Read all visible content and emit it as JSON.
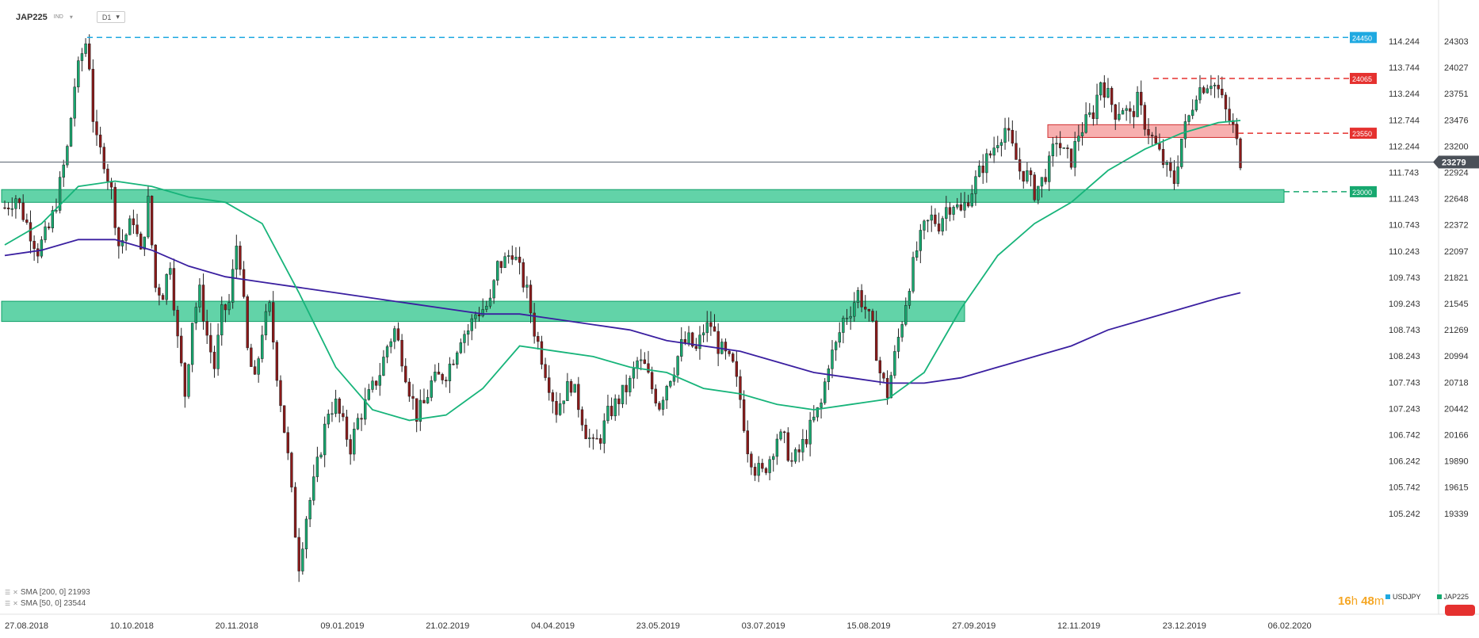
{
  "header": {
    "symbol": "JAP225",
    "tag": "IND",
    "caret": "▾",
    "timeframe": "D1"
  },
  "indicators": [
    {
      "label": "SMA [200, 0] 21993",
      "color": "#3a1fa0"
    },
    {
      "label": "SMA [50, 0] 23544",
      "color": "#17b47a"
    }
  ],
  "timer": {
    "hours": "16",
    "h": "h ",
    "minutes": "48",
    "m": "m"
  },
  "legend": {
    "left": "USDJPY",
    "right": "JAP225"
  },
  "colors": {
    "up": "#17a86f",
    "down": "#8b1a1a",
    "zone_green": "#2ec48b",
    "zone_red": "#f06d6d",
    "sma200": "#3a1fa0",
    "sma50": "#17b47a",
    "cyan": "#1fa9e1",
    "red": "#e5312f"
  },
  "chart_data": {
    "type": "candlestick",
    "xlabels": [
      "27.08.2018",
      "10.10.2018",
      "20.11.2018",
      "09.01.2019",
      "21.02.2019",
      "04.04.2019",
      "23.05.2019",
      "03.07.2019",
      "15.08.2019",
      "27.09.2019",
      "12.11.2019",
      "23.12.2019",
      "06.02.2020"
    ],
    "right_axis": [
      "24303",
      "24027",
      "23751",
      "23476",
      "23200",
      "22924",
      "22648",
      "22372",
      "22097",
      "21821",
      "21545",
      "21269",
      "20994",
      "20718",
      "20442",
      "20166",
      "19890",
      "19615",
      "19339"
    ],
    "left_axis": [
      "114.244",
      "113.744",
      "113.244",
      "112.744",
      "112.244",
      "111.743",
      "111.243",
      "110.743",
      "110.243",
      "109.743",
      "109.243",
      "108.743",
      "108.243",
      "107.743",
      "107.243",
      "106.742",
      "106.242",
      "105.742",
      "105.242"
    ],
    "price_range": [
      19139,
      24579
    ],
    "last_price": "23279",
    "levels": [
      {
        "label": "24450",
        "value": 24450,
        "color": "cyan"
      },
      {
        "label": "24065",
        "value": 24065,
        "color": "red"
      },
      {
        "label": "23550",
        "value": 23550,
        "color": "red"
      },
      {
        "label": "23000",
        "value": 23000,
        "color": "green"
      }
    ],
    "zones": [
      {
        "color": "green",
        "from": 22900,
        "to": 23020
      },
      {
        "color": "green",
        "from": 21780,
        "to": 21970
      },
      {
        "color": "red",
        "from": 23510,
        "to": 23630
      }
    ],
    "path_points": [
      [
        0,
        22850
      ],
      [
        3,
        22950
      ],
      [
        6,
        22700
      ],
      [
        9,
        22450
      ],
      [
        12,
        22650
      ],
      [
        14,
        22900
      ],
      [
        17,
        23400
      ],
      [
        19,
        24000
      ],
      [
        21,
        24300
      ],
      [
        22,
        24400
      ],
      [
        23,
        24200
      ],
      [
        24,
        23700
      ],
      [
        25,
        23450
      ],
      [
        27,
        23300
      ],
      [
        29,
        23000
      ],
      [
        31,
        22500
      ],
      [
        33,
        22600
      ],
      [
        35,
        22750
      ],
      [
        37,
        22400
      ],
      [
        39,
        22900
      ],
      [
        41,
        22100
      ],
      [
        43,
        22050
      ],
      [
        45,
        22350
      ],
      [
        47,
        21600
      ],
      [
        49,
        21100
      ],
      [
        51,
        21800
      ],
      [
        53,
        22050
      ],
      [
        55,
        21650
      ],
      [
        57,
        21350
      ],
      [
        59,
        21850
      ],
      [
        61,
        21950
      ],
      [
        63,
        22500
      ],
      [
        64,
        22350
      ],
      [
        66,
        21500
      ],
      [
        68,
        21200
      ],
      [
        70,
        21700
      ],
      [
        72,
        21900
      ],
      [
        74,
        21300
      ],
      [
        77,
        20500
      ],
      [
        79,
        19800
      ],
      [
        80,
        19500
      ],
      [
        82,
        19950
      ],
      [
        84,
        20250
      ],
      [
        86,
        20600
      ],
      [
        88,
        20950
      ],
      [
        90,
        21000
      ],
      [
        92,
        20800
      ],
      [
        94,
        20600
      ],
      [
        96,
        20850
      ],
      [
        98,
        21000
      ],
      [
        100,
        21150
      ],
      [
        102,
        21300
      ],
      [
        104,
        21550
      ],
      [
        106,
        21700
      ],
      [
        108,
        21450
      ],
      [
        110,
        21150
      ],
      [
        112,
        20900
      ],
      [
        114,
        21000
      ],
      [
        116,
        21200
      ],
      [
        118,
        21250
      ],
      [
        120,
        21300
      ],
      [
        122,
        21450
      ],
      [
        124,
        21650
      ],
      [
        126,
        21700
      ],
      [
        128,
        21850
      ],
      [
        130,
        21900
      ],
      [
        132,
        21950
      ],
      [
        134,
        22300
      ],
      [
        136,
        22350
      ],
      [
        138,
        22450
      ],
      [
        140,
        22250
      ],
      [
        142,
        22050
      ],
      [
        144,
        21700
      ],
      [
        146,
        21450
      ],
      [
        148,
        21200
      ],
      [
        150,
        20950
      ],
      [
        152,
        21100
      ],
      [
        154,
        21200
      ],
      [
        156,
        21000
      ],
      [
        158,
        20750
      ],
      [
        160,
        20600
      ],
      [
        162,
        20700
      ],
      [
        164,
        20900
      ],
      [
        166,
        21000
      ],
      [
        168,
        21100
      ],
      [
        170,
        21200
      ],
      [
        172,
        21400
      ],
      [
        174,
        21350
      ],
      [
        176,
        21150
      ],
      [
        178,
        21000
      ],
      [
        180,
        21200
      ],
      [
        182,
        21350
      ],
      [
        184,
        21550
      ],
      [
        186,
        21600
      ],
      [
        188,
        21500
      ],
      [
        190,
        21700
      ],
      [
        192,
        21750
      ],
      [
        194,
        21550
      ],
      [
        196,
        21450
      ],
      [
        198,
        21350
      ],
      [
        200,
        21050
      ],
      [
        202,
        20600
      ],
      [
        204,
        20400
      ],
      [
        206,
        20350
      ],
      [
        208,
        20500
      ],
      [
        210,
        20700
      ],
      [
        212,
        20650
      ],
      [
        214,
        20450
      ],
      [
        216,
        20550
      ],
      [
        218,
        20700
      ],
      [
        220,
        20850
      ],
      [
        222,
        21000
      ],
      [
        224,
        21400
      ],
      [
        226,
        21550
      ],
      [
        228,
        21800
      ],
      [
        230,
        21900
      ],
      [
        232,
        22050
      ],
      [
        234,
        21900
      ],
      [
        236,
        21700
      ],
      [
        238,
        21300
      ],
      [
        240,
        21100
      ],
      [
        242,
        21450
      ],
      [
        244,
        21800
      ],
      [
        246,
        22150
      ],
      [
        248,
        22450
      ],
      [
        250,
        22650
      ],
      [
        252,
        22750
      ],
      [
        254,
        22700
      ],
      [
        256,
        22850
      ],
      [
        258,
        22900
      ],
      [
        260,
        22800
      ],
      [
        262,
        22950
      ],
      [
        264,
        23100
      ],
      [
        266,
        23250
      ],
      [
        268,
        23350
      ],
      [
        270,
        23500
      ],
      [
        272,
        23600
      ],
      [
        274,
        23400
      ],
      [
        276,
        23200
      ],
      [
        278,
        23150
      ],
      [
        280,
        23000
      ],
      [
        282,
        23100
      ],
      [
        284,
        23250
      ],
      [
        286,
        23500
      ],
      [
        288,
        23350
      ],
      [
        290,
        23300
      ],
      [
        292,
        23550
      ],
      [
        294,
        23650
      ],
      [
        296,
        23750
      ],
      [
        298,
        24050
      ],
      [
        300,
        23900
      ],
      [
        302,
        23750
      ],
      [
        304,
        23800
      ],
      [
        306,
        23700
      ],
      [
        308,
        23850
      ],
      [
        310,
        23650
      ],
      [
        312,
        23500
      ],
      [
        314,
        23350
      ],
      [
        316,
        23200
      ],
      [
        318,
        23100
      ],
      [
        320,
        23500
      ],
      [
        322,
        23700
      ],
      [
        324,
        23950
      ],
      [
        326,
        24000
      ],
      [
        328,
        24050
      ],
      [
        330,
        23950
      ],
      [
        332,
        23750
      ],
      [
        334,
        23600
      ],
      [
        336,
        23300
      ]
    ],
    "sma50": [
      [
        0,
        22500
      ],
      [
        10,
        22700
      ],
      [
        20,
        23050
      ],
      [
        30,
        23100
      ],
      [
        40,
        23050
      ],
      [
        50,
        22950
      ],
      [
        60,
        22900
      ],
      [
        70,
        22700
      ],
      [
        80,
        22050
      ],
      [
        90,
        21350
      ],
      [
        100,
        20950
      ],
      [
        110,
        20850
      ],
      [
        120,
        20900
      ],
      [
        130,
        21150
      ],
      [
        140,
        21550
      ],
      [
        150,
        21500
      ],
      [
        160,
        21450
      ],
      [
        170,
        21350
      ],
      [
        180,
        21300
      ],
      [
        190,
        21150
      ],
      [
        200,
        21100
      ],
      [
        210,
        21000
      ],
      [
        220,
        20950
      ],
      [
        230,
        21000
      ],
      [
        240,
        21050
      ],
      [
        250,
        21300
      ],
      [
        260,
        21900
      ],
      [
        270,
        22400
      ],
      [
        280,
        22700
      ],
      [
        290,
        22900
      ],
      [
        300,
        23200
      ],
      [
        310,
        23400
      ],
      [
        320,
        23550
      ],
      [
        330,
        23650
      ],
      [
        336,
        23670
      ]
    ],
    "sma200": [
      [
        0,
        22400
      ],
      [
        10,
        22450
      ],
      [
        20,
        22550
      ],
      [
        30,
        22550
      ],
      [
        40,
        22450
      ],
      [
        50,
        22300
      ],
      [
        60,
        22200
      ],
      [
        70,
        22150
      ],
      [
        80,
        22100
      ],
      [
        90,
        22050
      ],
      [
        100,
        22000
      ],
      [
        110,
        21950
      ],
      [
        120,
        21900
      ],
      [
        130,
        21850
      ],
      [
        140,
        21850
      ],
      [
        150,
        21800
      ],
      [
        160,
        21750
      ],
      [
        170,
        21700
      ],
      [
        180,
        21600
      ],
      [
        190,
        21550
      ],
      [
        200,
        21500
      ],
      [
        210,
        21400
      ],
      [
        220,
        21300
      ],
      [
        230,
        21250
      ],
      [
        240,
        21200
      ],
      [
        250,
        21200
      ],
      [
        260,
        21250
      ],
      [
        270,
        21350
      ],
      [
        280,
        21450
      ],
      [
        290,
        21550
      ],
      [
        300,
        21700
      ],
      [
        310,
        21800
      ],
      [
        320,
        21900
      ],
      [
        330,
        22000
      ],
      [
        336,
        22050
      ]
    ]
  }
}
